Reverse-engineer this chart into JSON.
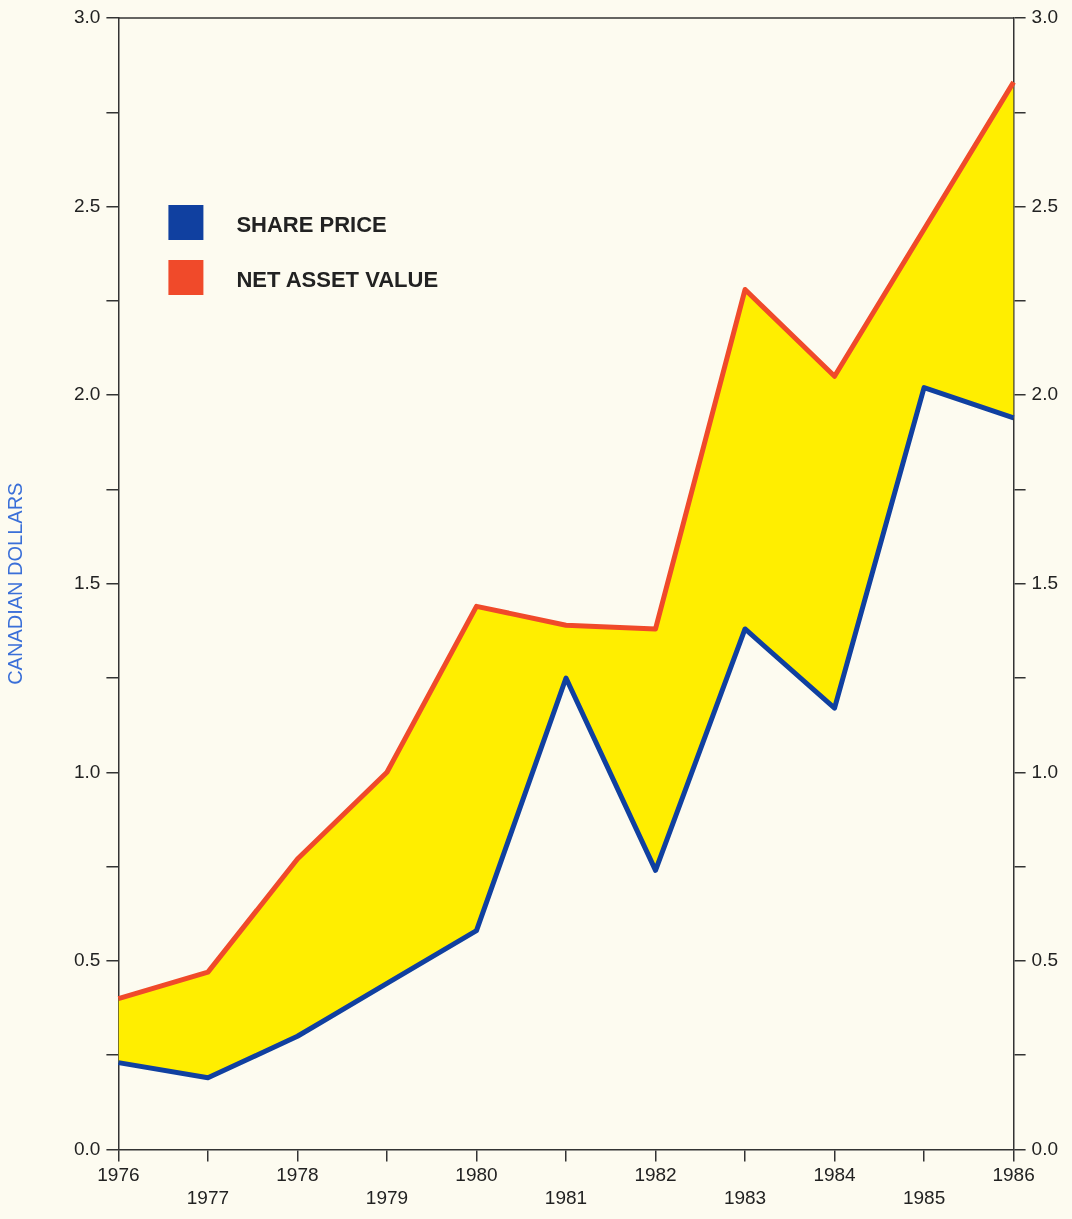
{
  "chart_data": {
    "type": "line",
    "ylabel": "CANADIAN DOLLARS",
    "categories": [
      "1976",
      "1977",
      "1978",
      "1979",
      "1980",
      "1981",
      "1982",
      "1983",
      "1984",
      "1985",
      "1986"
    ],
    "series": [
      {
        "name": "SHARE PRICE",
        "color": "#1040a0",
        "values": [
          0.23,
          0.19,
          0.3,
          0.44,
          0.58,
          1.25,
          0.74,
          1.38,
          1.17,
          2.02,
          1.94
        ]
      },
      {
        "name": "NET ASSET VALUE",
        "color": "#f04a2a",
        "values": [
          0.4,
          0.47,
          0.77,
          1.0,
          1.44,
          1.39,
          1.38,
          2.28,
          2.05,
          2.44,
          2.83
        ],
        "lower": [
          0.23,
          0.19,
          0.3,
          0.44,
          0.58,
          1.25,
          0.74,
          1.38,
          1.17,
          2.02,
          1.94
        ],
        "upper": [
          0.4,
          0.47,
          0.77,
          1.0,
          1.44,
          1.39,
          1.38,
          2.28,
          2.05,
          2.44,
          2.83
        ]
      }
    ],
    "ylim": [
      0,
      3
    ],
    "yticks": [
      {
        "value": 0,
        "label": "0.0"
      },
      {
        "value": 0.25,
        "label": null
      },
      0.5,
      {
        "value": 0.75,
        "label": null
      },
      {
        "value": 1,
        "label": "1.0"
      },
      {
        "value": 1.25,
        "label": null
      },
      1.5,
      {
        "value": 1.75,
        "label": null
      },
      {
        "value": 2,
        "label": "2.0"
      },
      {
        "value": 2.25,
        "label": null
      },
      2.5,
      {
        "value": 2.75,
        "label": null
      },
      {
        "value": 3,
        "label": "3.0"
      }
    ],
    "y2lim": [
      0,
      3
    ],
    "y2ticks": [
      {
        "value": 0,
        "label": "0.0"
      },
      {
        "value": 0.25,
        "label": null
      },
      0.5,
      {
        "value": 0.75,
        "label": null
      },
      {
        "value": 1,
        "label": "1.0"
      },
      {
        "value": 1.25,
        "label": null
      },
      1.5,
      {
        "value": 1.75,
        "label": null
      },
      {
        "value": 2,
        "label": "2.0"
      },
      {
        "value": 2.25,
        "label": null
      },
      2.5,
      {
        "value": 2.75,
        "label": null
      },
      {
        "value": 3,
        "label": "3.0"
      }
    ],
    "legend": "top left",
    "grid": false,
    "marker": "none",
    "line_style": "solid"
  }
}
